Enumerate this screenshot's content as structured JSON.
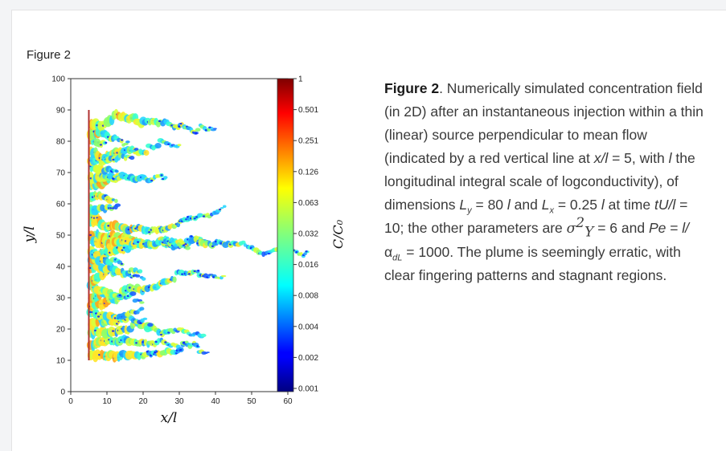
{
  "figure_label": "Figure 2",
  "caption": {
    "label": "Figure 2",
    "seg1": ". Numerically simulated concentration field (in 2D) after an instantaneous injection within a thin (linear) source perpendicular to mean flow (indicated by a red vertical line at ",
    "xl": "x/l",
    "seg2": " = 5, with ",
    "l1": "l",
    "seg3": " the longitudinal integral scale of logconductivity), of dimensions ",
    "Ly": "L",
    "Ly_sub": "y",
    "seg4": " = 80 ",
    "l2": "l",
    "seg5": " and ",
    "Lx": "L",
    "Lx_sub": "x",
    "seg6": " = 0.25 ",
    "l3": "l",
    "seg7": " at time ",
    "tUl": "tU/l",
    "seg8": " = 10; the other parameters are ",
    "sigma": "σ",
    "sigma_sub": "Y",
    "sigma_sup": "2",
    "seg9": " = 6 and ",
    "Pe": "Pe",
    "seg10": " = ",
    "l4": "l/",
    "alpha": "α",
    "alpha_sub": "dL",
    "seg11": " = 1000. The plume is seemingly erratic, with clear fingering patterns and stagnant regions."
  },
  "chart_data": {
    "type": "heatmap",
    "xlabel": "x/l",
    "ylabel": "y/l",
    "xlim": [
      0,
      60
    ],
    "ylim": [
      0,
      100
    ],
    "xticks": [
      "0",
      "10",
      "20",
      "30",
      "40",
      "50",
      "60"
    ],
    "yticks": [
      "0",
      "10",
      "20",
      "30",
      "40",
      "50",
      "60",
      "70",
      "80",
      "90",
      "100"
    ],
    "source_line": {
      "x": 5,
      "y_start": 10,
      "y_end": 90,
      "color": "#b03030"
    },
    "colorbar": {
      "label": "C/C₀",
      "scale": "log",
      "ticks": [
        "1",
        "0.501",
        "0.251",
        "0.126",
        "0.063",
        "0.032",
        "0.016",
        "0.008",
        "0.004",
        "0.002",
        "0.001"
      ]
    }
  }
}
